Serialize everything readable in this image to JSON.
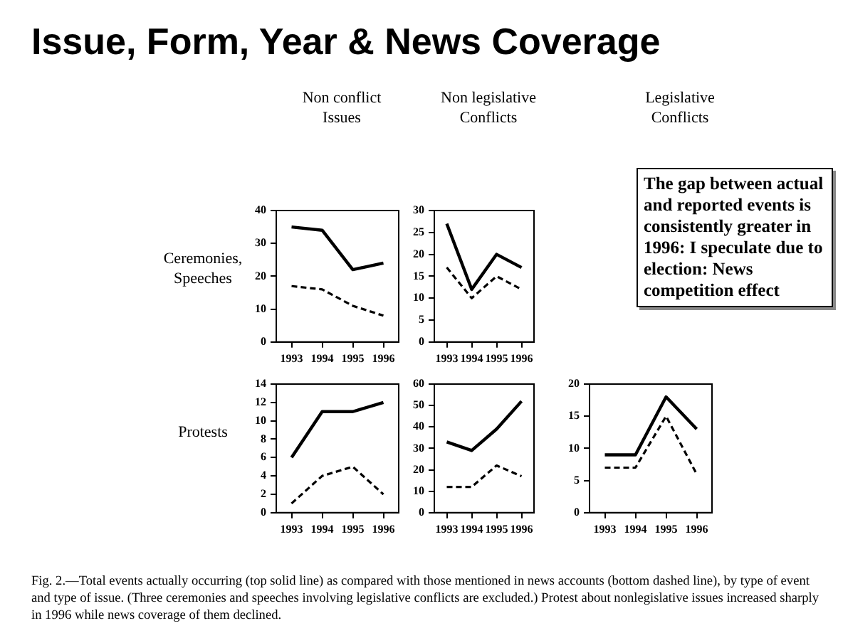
{
  "chart_data": [
    {
      "type": "other",
      "title": "Issue, Form, Year & News Coverage",
      "annotations": [
        "Fig. 2.—Total events actually occurring (top solid line) as compared with those mentioned in news accounts (bottom dashed line), by type of event and type of issue. (Three ceremonies and speeches involving legislative conflicts are excluded.) Protest about nonlegislative issues increased sharply in 1996 while news coverage of them declined."
      ]
    },
    {
      "type": "line",
      "title": "Non conflict\nIssues",
      "ylabel": "Ceremonies,\nSpeeches",
      "categories": [
        "1993",
        "1994",
        "1995",
        "1996"
      ],
      "ylim": [
        0,
        40
      ],
      "yticks": [
        0,
        10,
        20,
        30,
        40
      ],
      "series": [
        {
          "color": "#000000",
          "line_style": "solid",
          "values": [
            35,
            34,
            22,
            24
          ]
        },
        {
          "color": "#000000",
          "line_style": "dashed",
          "values": [
            17,
            16,
            11,
            8
          ]
        }
      ]
    },
    {
      "type": "line",
      "title": "Non legislative\nConflicts",
      "categories": [
        "1993",
        "1994",
        "1995",
        "1996"
      ],
      "ylim": [
        0,
        30
      ],
      "yticks": [
        0,
        5,
        10,
        15,
        20,
        25,
        30
      ],
      "series": [
        {
          "color": "#000000",
          "line_style": "solid",
          "values": [
            27,
            12,
            20,
            17
          ]
        },
        {
          "color": "#000000",
          "line_style": "dashed",
          "values": [
            17,
            10,
            15,
            12
          ]
        }
      ]
    },
    {
      "type": "other",
      "title": "Legislative\nConflicts",
      "annotations": [
        "The gap between actual and reported events is consistently greater in 1996: I speculate due to election: News competition effect"
      ]
    },
    {
      "type": "line",
      "ylabel": "Protests",
      "categories": [
        "1993",
        "1994",
        "1995",
        "1996"
      ],
      "ylim": [
        0,
        14
      ],
      "yticks": [
        0,
        2,
        4,
        6,
        8,
        10,
        12,
        14
      ],
      "series": [
        {
          "color": "#000000",
          "line_style": "solid",
          "values": [
            6,
            11,
            11,
            12
          ]
        },
        {
          "color": "#000000",
          "line_style": "dashed",
          "values": [
            1,
            4,
            5,
            2
          ]
        }
      ]
    },
    {
      "type": "line",
      "categories": [
        "1993",
        "1994",
        "1995",
        "1996"
      ],
      "ylim": [
        0,
        60
      ],
      "yticks": [
        0,
        10,
        20,
        30,
        40,
        50,
        60
      ],
      "series": [
        {
          "color": "#000000",
          "line_style": "solid",
          "values": [
            33,
            29,
            39,
            52
          ]
        },
        {
          "color": "#000000",
          "line_style": "dashed",
          "values": [
            12,
            12,
            22,
            17
          ]
        }
      ]
    },
    {
      "type": "line",
      "categories": [
        "1993",
        "1994",
        "1995",
        "1996"
      ],
      "ylim": [
        0,
        20
      ],
      "yticks": [
        0,
        5,
        10,
        15,
        20
      ],
      "series": [
        {
          "color": "#000000",
          "line_style": "solid",
          "values": [
            9,
            9,
            18,
            13
          ]
        },
        {
          "color": "#000000",
          "line_style": "dashed",
          "values": [
            7,
            7,
            15,
            6
          ]
        }
      ]
    }
  ]
}
